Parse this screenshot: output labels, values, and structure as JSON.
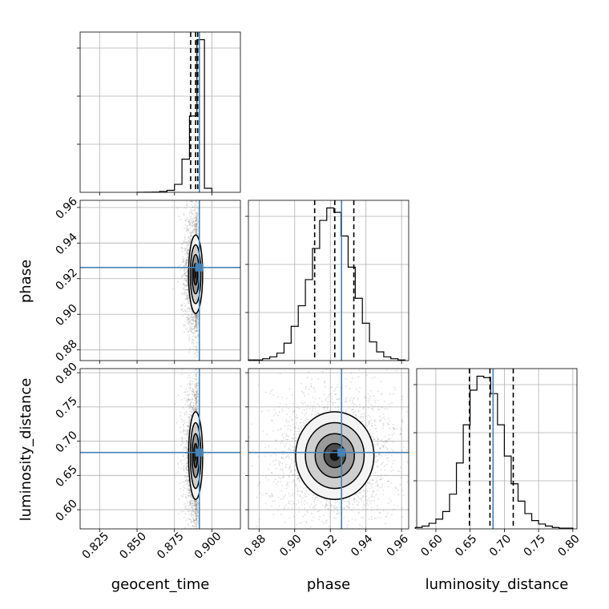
{
  "chart_data": {
    "type": "corner",
    "parameters": [
      "geocent_time",
      "phase",
      "luminosity_distance"
    ],
    "axis_labels": {
      "geocent_time": "geocent_time",
      "phase": "phase",
      "luminosity_distance": "luminosity_distance"
    },
    "ranges": {
      "geocent_time": [
        0.812,
        0.919
      ],
      "phase": [
        0.874,
        0.964
      ],
      "luminosity_distance": [
        0.572,
        0.806
      ]
    },
    "ticks": {
      "geocent_time": [
        "0.825",
        "0.850",
        "0.875",
        "0.900"
      ],
      "phase": [
        "0.88",
        "0.90",
        "0.92",
        "0.94",
        "0.96"
      ],
      "luminosity_distance": [
        "0.60",
        "0.65",
        "0.70",
        "0.75",
        "0.80"
      ]
    },
    "truths": {
      "geocent_time": 0.8916,
      "phase": 0.9263,
      "luminosity_distance": 0.6835
    },
    "quantiles": {
      "geocent_time": [
        0.8858,
        0.8891,
        0.8905
      ],
      "phase": [
        0.9112,
        0.9225,
        0.9332
      ],
      "luminosity_distance": [
        0.649,
        0.679,
        0.713
      ]
    },
    "marginals": {
      "geocent_time": {
        "bins": [
          0.85,
          0.855,
          0.86,
          0.865,
          0.87,
          0.875,
          0.88,
          0.885,
          0.89,
          0.895,
          0.9
        ],
        "counts": [
          1,
          2,
          4,
          12,
          30,
          120,
          500,
          1150,
          2300,
          60
        ]
      },
      "phase": {
        "bins": [
          0.874,
          0.878,
          0.882,
          0.886,
          0.89,
          0.894,
          0.898,
          0.902,
          0.906,
          0.91,
          0.914,
          0.918,
          0.922,
          0.926,
          0.93,
          0.934,
          0.938,
          0.942,
          0.946,
          0.95,
          0.954,
          0.958,
          0.962
        ],
        "counts": [
          1,
          1,
          3,
          6,
          12,
          28,
          55,
          88,
          130,
          180,
          225,
          245,
          238,
          200,
          150,
          100,
          60,
          30,
          14,
          6,
          3,
          1
        ]
      },
      "luminosity_distance": {
        "bins": [
          0.57,
          0.58,
          0.59,
          0.6,
          0.61,
          0.62,
          0.63,
          0.64,
          0.65,
          0.66,
          0.67,
          0.68,
          0.69,
          0.7,
          0.71,
          0.72,
          0.73,
          0.74,
          0.75,
          0.76,
          0.77,
          0.78,
          0.79,
          0.8
        ],
        "counts": [
          2,
          4,
          8,
          14,
          25,
          50,
          95,
          150,
          200,
          220,
          218,
          195,
          150,
          105,
          65,
          40,
          22,
          12,
          7,
          4,
          2,
          1,
          1
        ]
      }
    },
    "grid": true,
    "colors": {
      "truth": "#4682b4",
      "contour": "#000000",
      "samples": "#808080"
    }
  }
}
